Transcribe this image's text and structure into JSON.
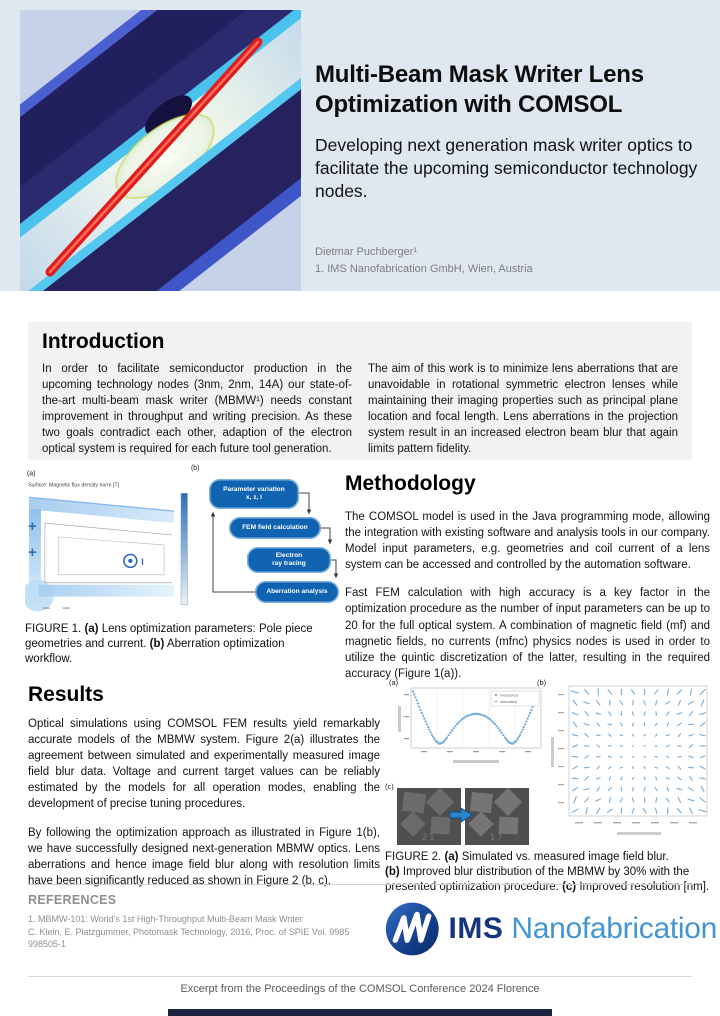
{
  "header": {
    "title": "Multi-Beam Mask Writer Lens Optimization with COMSOL",
    "subtitle": "Developing next generation mask writer optics to facilitate the upcoming semiconductor technology nodes.",
    "author": "Dietmar Puchberger¹",
    "affiliation": "1. IMS Nanofabrication GmbH,  Wien, Austria"
  },
  "introduction": {
    "heading": "Introduction",
    "col1": "In order to facilitate semiconductor production in the upcoming technology nodes (3nm, 2nm, 14A) our state-of-the-art multi-beam mask writer (MBMW¹) needs constant improvement in throughput and writing precision. As these two goals contradict each other, adaption of the electron optical system is required for each future tool generation.",
    "col2": "The aim of this work is to minimize lens aberrations that are unavoidable in rotational symmetric electron lenses while maintaining their imaging properties such as principal plane location and focal length. Lens aberrations in the projection system result in an increased electron beam blur that again limits pattern fidelity."
  },
  "methodology": {
    "heading": "Methodology",
    "para1": "The COMSOL model is used in the Java programming mode, allowing the integration with existing software and analysis tools in our company. Model input parameters, e.g. geometries and coil current of a lens system can be accessed and controlled by the automation software.",
    "para2": "Fast FEM calculation with high accuracy is a key factor in the optimization procedure as the number of input parameters can be up to 20 for the full optical system. A combination of magnetic field (mf) and magnetic fields, no currents (mfnc) physics nodes is used in order to utilize the quintic discretization of the latter, resulting in the required accuracy (Figure 1(a))."
  },
  "figure1": {
    "panel_a_label": "(a)",
    "panel_b_label": "(b)",
    "plot_title": "Surface: Magnetic flux density norm [T]",
    "current_symbol": "I",
    "plus_symbol": "+",
    "flowchart": [
      "Parameter variation\nx, z, I",
      "FEM field calculation",
      "Electron\nray tracing",
      "Aberration analysis"
    ],
    "caption": {
      "c1": "FIGURE 1. ",
      "b1": "(a)",
      "c2": " Lens optimization parameters: Pole piece geometries and current. ",
      "b2": "(b)",
      "c3": " Aberration optimization workflow."
    }
  },
  "results": {
    "heading": "Results",
    "para1": "Optical simulations using COMSOL FEM results yield remarkably accurate models of the MBMW system. Figure 2(a) illustrates the agreement between simulated and experimentally measured image field blur data. Voltage and current target values can be reliably estimated by the models for all operation modes, enabling the development of precise tuning procedures.",
    "para2": "By following the optimization approach as illustrated in Figure 1(b), we have successfully designed next-generation MBMW optics. Lens aberrations and hence image field blur along with resolution limits have been significantly reduced as shown in Figure 2 (b, c)."
  },
  "figure2": {
    "panel_a_label": "(a)",
    "panel_b_label": "(b)",
    "panel_c_label": "(c)",
    "legend": [
      "measured",
      "simulated"
    ],
    "panel_c_values": [
      "21",
      "17"
    ],
    "caption": {
      "c1": "FIGURE 2. ",
      "b1": "(a)",
      "c2": " Simulated vs. measured image field blur.",
      "b2": "(b)",
      "c3": " Improved blur distribution of the MBMW by 30% with the presented optimization procedure. ",
      "b3": "(c)",
      "c4": " Improved resolution [nm]."
    }
  },
  "references": {
    "heading": "REFERENCES",
    "entry": "1. MBMW-101: World's 1st High-Throughput Multi-Beam Mask Writer\nC. Klein, E. Platzgummer, Photomask Technology, 2016,  Proc. of SPIE Vol. 9985\n998505-1"
  },
  "logo": {
    "ims": "IMS",
    "nano": "Nanofabrication"
  },
  "footer": {
    "text": "Excerpt from the Proceedings of the COMSOL Conference 2024 Florence"
  },
  "colors": {
    "accent_blue": "#1063b1",
    "header_bg": "#dfe7f0",
    "intro_bg": "#f2f2f2",
    "logo_dark": "#16357f",
    "logo_light": "#4496d2",
    "beam_red": "#dd1c1c"
  }
}
